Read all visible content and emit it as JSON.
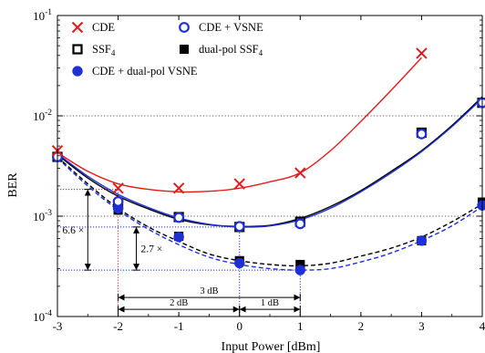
{
  "chart_data": {
    "type": "scatter",
    "xlabel": "Input Power [dBm]",
    "ylabel": "BER",
    "x_ticks": [
      "-3",
      "-2",
      "-1",
      "0",
      "1",
      "2",
      "3",
      "4"
    ],
    "y_scale": "log",
    "xlim": [
      -3,
      4
    ],
    "ylim": [
      0.0001,
      0.1
    ],
    "y_ticks": [
      {
        "value": 0.0001,
        "base": "10",
        "exp": "-4"
      },
      {
        "value": 0.001,
        "base": "10",
        "exp": "-3"
      },
      {
        "value": 0.01,
        "base": "10",
        "exp": "-2"
      },
      {
        "value": 0.1,
        "base": "10",
        "exp": "-1"
      }
    ],
    "legend": {
      "placement": "top-left",
      "entries": [
        {
          "name": "CDE",
          "marker": "x",
          "color": "#e31a1c"
        },
        {
          "name": "CDE + VSNE",
          "marker": "open-circle",
          "color": "#1f2fd6"
        },
        {
          "name": "SSF",
          "sub": "4",
          "marker": "open-square",
          "color": "#000000"
        },
        {
          "name": "dual-pol SSF",
          "sub": "4",
          "marker": "filled-square",
          "color": "#000000"
        },
        {
          "name": "CDE + dual-pol VSNE",
          "marker": "filled-circle",
          "color": "#1f2fd6"
        }
      ]
    },
    "series": [
      {
        "id": "cde",
        "marker": "x",
        "color": "#e31a1c",
        "x": [
          -3,
          -2,
          -1,
          0,
          1,
          3
        ],
        "y": [
          0.0045,
          0.0019,
          0.0019,
          0.0021,
          0.0027,
          0.042
        ]
      },
      {
        "id": "cde_vsne",
        "marker": "open-circle",
        "color": "#1f2fd6",
        "x": [
          -3,
          -2,
          -1,
          0,
          1,
          3,
          4
        ],
        "y": [
          0.0039,
          0.0014,
          0.00097,
          0.00079,
          0.00084,
          0.0066,
          0.0135
        ]
      },
      {
        "id": "ssf4",
        "marker": "open-square",
        "color": "#000000",
        "x": [
          -3,
          -2,
          -1,
          0,
          1,
          3,
          4
        ],
        "y": [
          0.0039,
          0.0013,
          0.00098,
          0.00078,
          0.00088,
          0.0068,
          0.0135
        ]
      },
      {
        "id": "dualpol_ssf4",
        "marker": "filled-square",
        "color": "#000000",
        "x": [
          -3,
          -2,
          -1,
          0,
          1,
          3,
          4
        ],
        "y": [
          0.0039,
          0.00115,
          0.00063,
          0.00036,
          0.00033,
          0.00057,
          0.00138
        ]
      },
      {
        "id": "cde_dualpol_vsne",
        "marker": "filled-circle",
        "color": "#1f2fd6",
        "x": [
          -3,
          -2,
          -1,
          0,
          1,
          3,
          4
        ],
        "y": [
          0.0039,
          0.0012,
          0.00062,
          0.00034,
          0.00029,
          0.00057,
          0.00128
        ]
      }
    ],
    "fits": [
      {
        "id": "fit-cde",
        "color": "#e31a1c",
        "style": "solid",
        "x": [
          -3,
          -2.5,
          -2,
          -1.5,
          -1,
          -0.5,
          0,
          0.5,
          1,
          1.5,
          2,
          2.5,
          3
        ],
        "y": [
          0.0043,
          0.0028,
          0.0021,
          0.00185,
          0.00175,
          0.00177,
          0.0019,
          0.0022,
          0.0027,
          0.0045,
          0.0088,
          0.018,
          0.038
        ]
      },
      {
        "id": "fit-ssf4",
        "color": "#000000",
        "style": "solid",
        "x": [
          -3,
          -2.5,
          -2,
          -1.5,
          -1,
          -0.5,
          0,
          0.5,
          1,
          1.5,
          2,
          2.5,
          3,
          3.5,
          4
        ],
        "y": [
          0.0041,
          0.0024,
          0.00158,
          0.00118,
          0.00093,
          0.00082,
          0.00079,
          0.00081,
          0.00095,
          0.00125,
          0.0018,
          0.0028,
          0.0045,
          0.008,
          0.0155
        ]
      },
      {
        "id": "fit-cde-vsne",
        "color": "#1f2fd6",
        "style": "solid",
        "x": [
          -3,
          -2.5,
          -2,
          -1.5,
          -1,
          -0.5,
          0,
          0.5,
          1,
          1.5,
          2,
          2.5,
          3,
          3.5,
          4
        ],
        "y": [
          0.0042,
          0.0025,
          0.00165,
          0.00122,
          0.00096,
          0.00083,
          0.00078,
          0.0008,
          0.00092,
          0.0012,
          0.00175,
          0.0027,
          0.0044,
          0.0078,
          0.015
        ]
      },
      {
        "id": "fit-dualpol-ssf4",
        "color": "#000000",
        "style": "dashed",
        "x": [
          -3,
          -2.5,
          -2,
          -1.5,
          -1,
          -0.5,
          0,
          0.5,
          1,
          1.5,
          2,
          2.5,
          3,
          3.5,
          4
        ],
        "y": [
          0.0039,
          0.0021,
          0.0012,
          0.00078,
          0.00056,
          0.00042,
          0.00036,
          0.00033,
          0.00032,
          0.00034,
          0.0004,
          0.00048,
          0.00062,
          0.00088,
          0.00132
        ]
      },
      {
        "id": "fit-cde-dualpol-vsne",
        "color": "#1f2fd6",
        "style": "dashed",
        "x": [
          -3,
          -2.5,
          -2,
          -1.5,
          -1,
          -0.5,
          0,
          0.5,
          1,
          1.5,
          2,
          2.5,
          3,
          3.5,
          4
        ],
        "y": [
          0.0038,
          0.002,
          0.00115,
          0.00074,
          0.00052,
          0.00039,
          0.00033,
          0.0003,
          0.00029,
          0.0003,
          0.00035,
          0.00043,
          0.00057,
          0.0008,
          0.00125
        ]
      }
    ],
    "reference_lines": [
      {
        "y": 0.01,
        "color": "#555555",
        "style": "dotted"
      },
      {
        "y": 0.001,
        "color": "#555555",
        "style": "dotted"
      }
    ],
    "annotations": {
      "guides": [
        {
          "color": "#e31a1c",
          "x_from": -3,
          "x_to": -2,
          "y": 0.00185
        },
        {
          "color": "#e31a1c",
          "x_vert": -2,
          "y_from": 0.00185,
          "y_to": 0.0001
        },
        {
          "color": "#1f2fd6",
          "x_from": -3,
          "x_to": 0,
          "y": 0.00078
        },
        {
          "color": "#1f2fd6",
          "x_vert": 0,
          "y_from": 0.00078,
          "y_to": 0.0001
        },
        {
          "color": "#1f2fd6",
          "x_from": -3,
          "x_to": 1,
          "y": 0.00029
        },
        {
          "color": "#1f2fd6",
          "x_vert": 1,
          "y_from": 0.00029,
          "y_to": 0.0001
        }
      ],
      "vertical_arrows": [
        {
          "x": -2.5,
          "y_from": 0.00185,
          "y_to": 0.00029,
          "label": "6.6 ×",
          "label_side": "left"
        },
        {
          "x": -1.7,
          "y_from": 0.00078,
          "y_to": 0.00029,
          "label": "2.7 ×",
          "label_side": "right"
        }
      ],
      "horizontal_arrows": [
        {
          "y": 0.000155,
          "x_from": -2,
          "x_to": 1,
          "label": "3 dB"
        },
        {
          "y": 0.000118,
          "x_from": -2,
          "x_to": 0,
          "label": "2 dB"
        },
        {
          "y": 0.000118,
          "x_from": 0,
          "x_to": 1,
          "label": "1 dB"
        }
      ]
    }
  }
}
